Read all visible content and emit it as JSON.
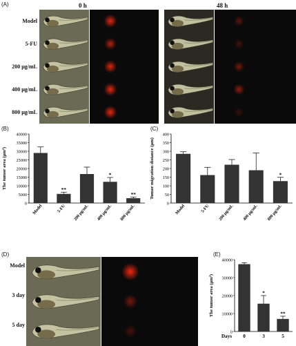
{
  "panelA": {
    "label": "(A)",
    "times": [
      "0 h",
      "48 h"
    ],
    "rows": [
      "Model",
      "5-FU",
      "200 μg/mL",
      "400 μg/mL",
      "800 μg/mL"
    ],
    "spot_intensity_0h": [
      0.9,
      0.7,
      0.85,
      0.9,
      0.9
    ],
    "spot_intensity_48h": [
      0.35,
      0.25,
      0.45,
      0.55,
      0.2
    ]
  },
  "panelD": {
    "label": "(D)",
    "rows": [
      "Model",
      "3 day",
      "5 day"
    ],
    "spot_intensity": [
      0.95,
      0.45,
      0.25
    ]
  },
  "colors": {
    "bar": "#333333",
    "spot": "#ff2a10",
    "dark": "#0a0a0a"
  },
  "chart_data": [
    {
      "id": "B",
      "label": "(B)",
      "type": "bar",
      "categories": [
        "Model",
        "5-FU",
        "200 μg/mL",
        "400 μg/mL",
        "800 μg/mL"
      ],
      "values": [
        29000,
        5300,
        16800,
        12300,
        2800
      ],
      "errors": [
        3500,
        1000,
        4000,
        2500,
        700
      ],
      "significance": [
        "",
        "**",
        "",
        "*",
        "**"
      ],
      "ylabel": "The tumor area (μm²)",
      "ylim": [
        0,
        40000
      ],
      "yticks": [
        0,
        5000,
        10000,
        15000,
        20000,
        25000,
        30000,
        35000,
        40000
      ]
    },
    {
      "id": "C",
      "label": "(C)",
      "type": "bar",
      "categories": [
        "Model",
        "5-FU",
        "200 μg/mL",
        "400 μg/mL",
        "800 μg/mL"
      ],
      "values": [
        285,
        162,
        222,
        190,
        127
      ],
      "errors": [
        12,
        45,
        30,
        100,
        22
      ],
      "significance": [
        "",
        "",
        "",
        "",
        "*"
      ],
      "ylabel": "Tumor migration distance (μm)",
      "ylim": [
        0,
        400
      ],
      "yticks": [
        0,
        50,
        100,
        150,
        200,
        250,
        300,
        350,
        400
      ]
    },
    {
      "id": "E",
      "label": "(E)",
      "type": "bar",
      "categories": [
        "0",
        "3",
        "5"
      ],
      "values": [
        37500,
        15500,
        7000
      ],
      "errors": [
        800,
        4500,
        1500
      ],
      "significance": [
        "",
        "*",
        "**"
      ],
      "ylabel": "The tumor area (μm²)",
      "xlabel": "Days",
      "ylim": [
        0,
        40000
      ],
      "yticks": [
        0,
        10000,
        20000,
        30000,
        40000
      ]
    }
  ]
}
